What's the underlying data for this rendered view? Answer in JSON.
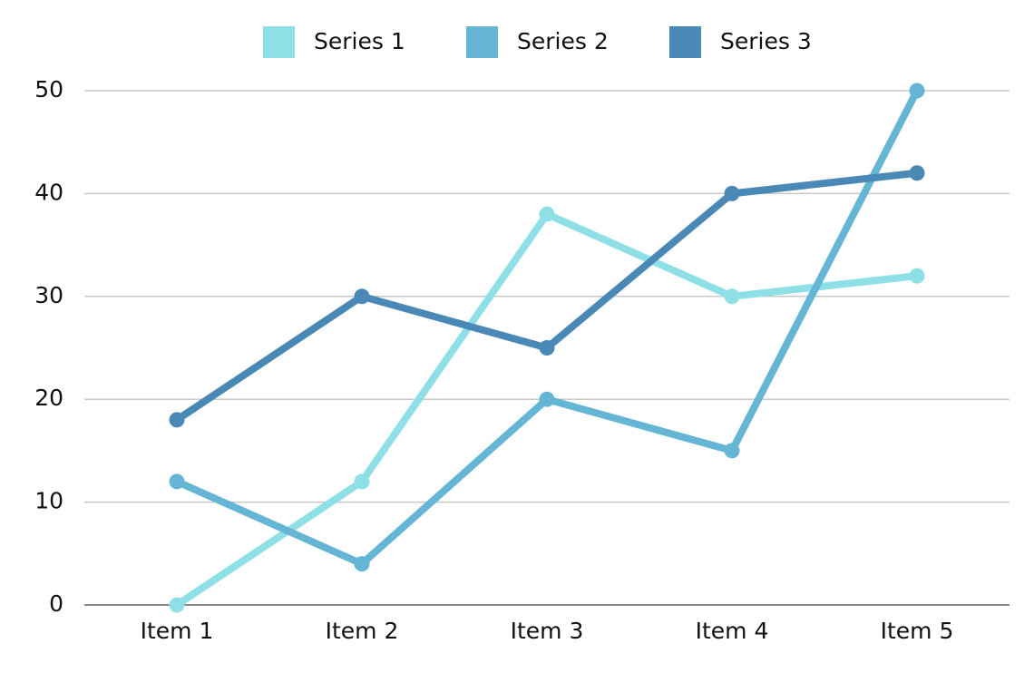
{
  "chart_data": {
    "type": "line",
    "categories": [
      "Item 1",
      "Item 2",
      "Item 3",
      "Item 4",
      "Item 5"
    ],
    "series": [
      {
        "name": "Series 1",
        "color": "#8ee0e6",
        "values": [
          0,
          12,
          38,
          30,
          32
        ]
      },
      {
        "name": "Series 2",
        "color": "#65b5d4",
        "values": [
          12,
          4,
          20,
          15,
          50
        ]
      },
      {
        "name": "Series 3",
        "color": "#4a88b6",
        "values": [
          18,
          30,
          25,
          40,
          42
        ]
      }
    ],
    "ylim": [
      0,
      50
    ],
    "yticks": [
      0,
      10,
      20,
      30,
      40,
      50
    ],
    "grid": true,
    "legend": "top"
  }
}
